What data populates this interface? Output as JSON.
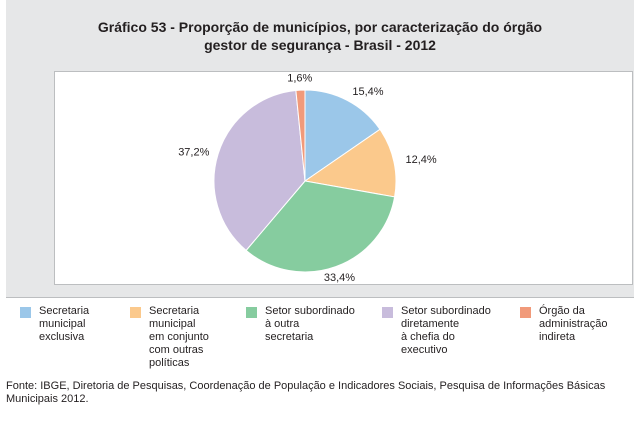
{
  "title_line1": "Gráfico 53 - Proporção de municípios, por caracterização do órgão",
  "title_line2": "gestor de segurança - Brasil - 2012",
  "chart_data": {
    "type": "pie",
    "title": "Gráfico 53 - Proporção de municípios, por caracterização do órgão gestor de segurança - Brasil - 2012",
    "categories": [
      "Secretaria municipal exclusiva",
      "Secretaria municipal em conjunto com outras políticas",
      "Setor subordinado à outra secretaria",
      "Setor subordinado diretamente à chefia do executivo",
      "Órgão da administração indireta"
    ],
    "values": [
      15.4,
      12.4,
      33.4,
      37.2,
      1.6
    ],
    "value_labels": [
      "15,4%",
      "12,4%",
      "33,4%",
      "37,2%",
      "1,6%"
    ],
    "colors": [
      "#9bc7e9",
      "#fbc98c",
      "#86cc9f",
      "#c8bcdc",
      "#f19a7a"
    ],
    "legend_position": "bottom"
  },
  "legend": [
    {
      "line1": "Secretaria",
      "line2": "municipal",
      "line3": "exclusiva",
      "line4": ""
    },
    {
      "line1": "Secretaria",
      "line2": "municipal",
      "line3": "em conjunto",
      "line4": "com outras",
      "line5": "políticas"
    },
    {
      "line1": "Setor subordinado",
      "line2": "à outra",
      "line3": "secretaria"
    },
    {
      "line1": "Setor subordinado",
      "line2": "diretamente",
      "line3": "à chefia do",
      "line4": "executivo"
    },
    {
      "line1": "Órgão da",
      "line2": "administração",
      "line3": "indireta"
    }
  ],
  "source_line1": "Fonte: IBGE, Diretoria de Pesquisas, Coordenação de População e Indicadores Sociais, Pesquisa de Informações Básicas",
  "source_line2": "Municipais 2012."
}
